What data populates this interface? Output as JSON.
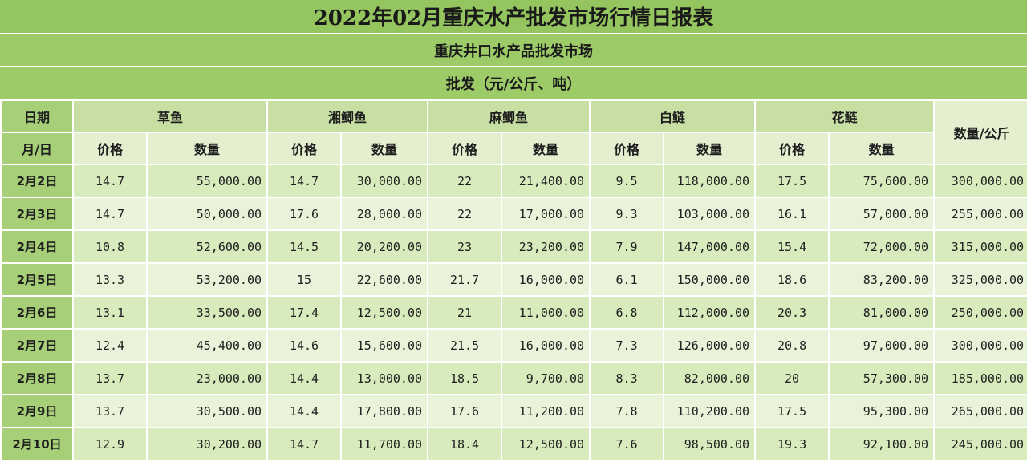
{
  "title": "2022年02月重庆水产批发市场行情日报表",
  "market": "重庆井口水产品批发市场",
  "unit": "批发（元/公斤、吨）",
  "header": {
    "date_top": "日期",
    "date_sub": "月/日",
    "groups": [
      "草鱼",
      "湘鲫鱼",
      "麻鲫鱼",
      "白鲢",
      "花鲢"
    ],
    "price": "价格",
    "qty": "数量",
    "total": "数量/公斤"
  },
  "rows": [
    {
      "date": "2月2日",
      "v": [
        "14.7",
        "55,000.00",
        "14.7",
        "30,000.00",
        "22",
        "21,400.00",
        "9.5",
        "118,000.00",
        "17.5",
        "75,600.00",
        "300,000.00"
      ]
    },
    {
      "date": "2月3日",
      "v": [
        "14.7",
        "50,000.00",
        "17.6",
        "28,000.00",
        "22",
        "17,000.00",
        "9.3",
        "103,000.00",
        "16.1",
        "57,000.00",
        "255,000.00"
      ]
    },
    {
      "date": "2月4日",
      "v": [
        "10.8",
        "52,600.00",
        "14.5",
        "20,200.00",
        "23",
        "23,200.00",
        "7.9",
        "147,000.00",
        "15.4",
        "72,000.00",
        "315,000.00"
      ]
    },
    {
      "date": "2月5日",
      "v": [
        "13.3",
        "53,200.00",
        "15",
        "22,600.00",
        "21.7",
        "16,000.00",
        "6.1",
        "150,000.00",
        "18.6",
        "83,200.00",
        "325,000.00"
      ]
    },
    {
      "date": "2月6日",
      "v": [
        "13.1",
        "33,500.00",
        "17.4",
        "12,500.00",
        "21",
        "11,000.00",
        "6.8",
        "112,000.00",
        "20.3",
        "81,000.00",
        "250,000.00"
      ]
    },
    {
      "date": "2月7日",
      "v": [
        "12.4",
        "45,400.00",
        "14.6",
        "15,600.00",
        "21.5",
        "16,000.00",
        "7.3",
        "126,000.00",
        "20.8",
        "97,000.00",
        "300,000.00"
      ]
    },
    {
      "date": "2月8日",
      "v": [
        "13.7",
        "23,000.00",
        "14.4",
        "13,000.00",
        "18.5",
        "9,700.00",
        "8.3",
        "82,000.00",
        "20",
        "57,300.00",
        "185,000.00"
      ]
    },
    {
      "date": "2月9日",
      "v": [
        "13.7",
        "30,500.00",
        "14.4",
        "17,800.00",
        "17.6",
        "11,200.00",
        "7.8",
        "110,200.00",
        "17.5",
        "95,300.00",
        "265,000.00"
      ]
    },
    {
      "date": "2月10日",
      "v": [
        "12.9",
        "30,200.00",
        "14.7",
        "11,700.00",
        "18.4",
        "12,500.00",
        "7.6",
        "98,500.00",
        "19.3",
        "92,100.00",
        "245,000.00"
      ]
    }
  ]
}
